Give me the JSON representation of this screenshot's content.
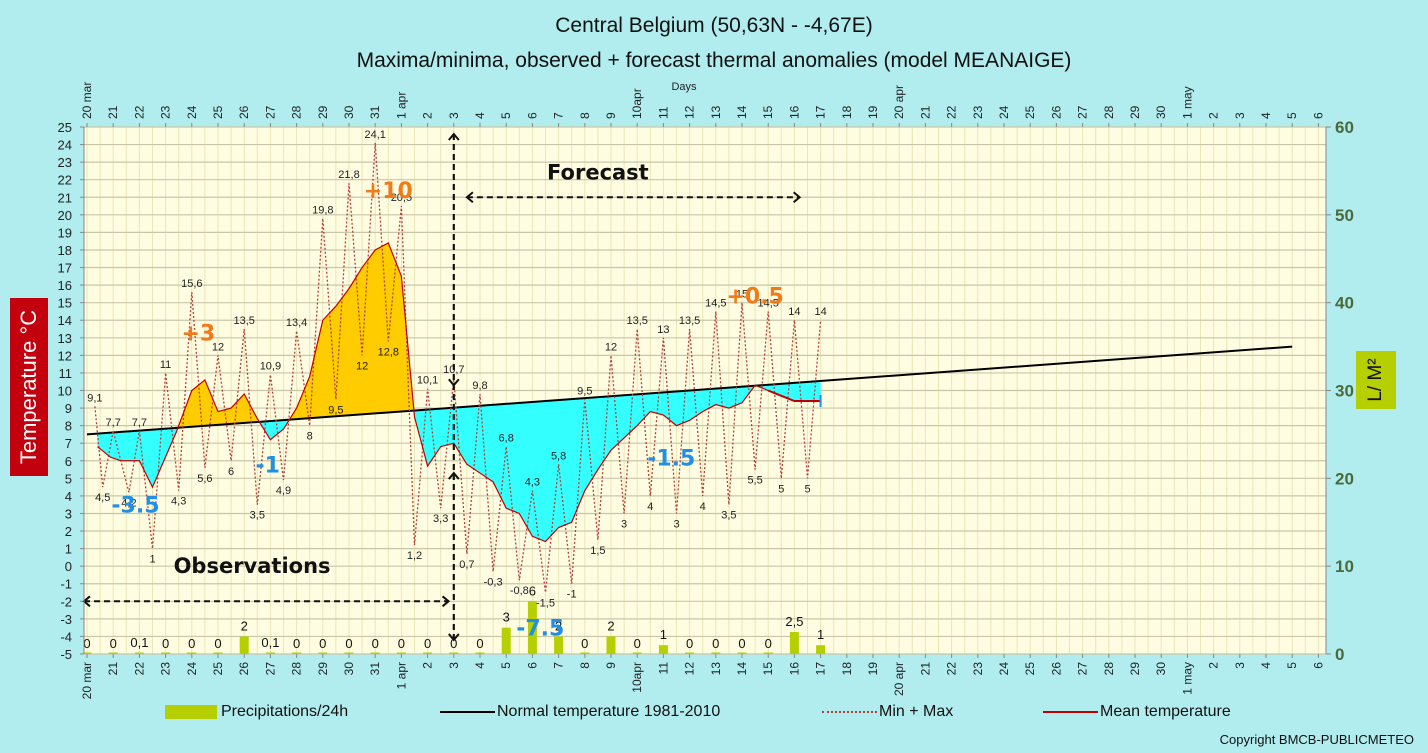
{
  "chart_data": {
    "type": "line",
    "title": "Central Belgium (50,63N - -4,67E)",
    "subtitle": "Maxima/minima, observed + forecast thermal anomalies (model MEANAIGE)",
    "xlabel": "Days",
    "ylabel_left": "Temperature °C",
    "ylabel_right": "L/ M²",
    "ylim_left": [
      -5,
      25
    ],
    "ylim_right": [
      0,
      60
    ],
    "yticks_left": [
      25,
      24,
      23,
      22,
      21,
      20,
      19,
      18,
      17,
      16,
      15,
      14,
      13,
      12,
      11,
      10,
      9,
      8,
      7,
      6,
      5,
      4,
      3,
      2,
      1,
      0,
      -1,
      -2,
      -3,
      -4,
      -5
    ],
    "yticks_right": [
      60,
      50,
      40,
      30,
      20,
      10,
      0
    ],
    "grid": true,
    "x_tick_labels": [
      "20 mar",
      "21",
      "22",
      "23",
      "24",
      "25",
      "26",
      "27",
      "28",
      "29",
      "30",
      "31",
      "1 apr",
      "2",
      "3",
      "4",
      "5",
      "6",
      "7",
      "8",
      "9",
      "10apr",
      "11",
      "12",
      "13",
      "14",
      "15",
      "16",
      "17",
      "18",
      "19",
      "20 apr",
      "21",
      "22",
      "23",
      "24",
      "25",
      "26",
      "27",
      "28",
      "29",
      "30",
      "1 may",
      "2",
      "3",
      "4",
      "5",
      "6"
    ],
    "normal_temperature": {
      "name": "Normal temperature 1981-2010",
      "start": {
        "day": 0,
        "value": 7.5
      },
      "end": {
        "day": 46,
        "value": 12.5
      }
    },
    "min_max": {
      "name": "Min + Max",
      "points": [
        {
          "day": 0.3,
          "value": 9.1,
          "label": "9,1"
        },
        {
          "day": 0.6,
          "value": 4.5,
          "label": "4,5"
        },
        {
          "day": 1.0,
          "value": 7.7,
          "label": "7,7"
        },
        {
          "day": 1.6,
          "value": 4.2,
          "label": "4,2"
        },
        {
          "day": 2.0,
          "value": 7.7,
          "label": "7,7"
        },
        {
          "day": 2.5,
          "value": 1,
          "label": "1"
        },
        {
          "day": 3.0,
          "value": 11,
          "label": "11"
        },
        {
          "day": 3.5,
          "value": 4.3,
          "label": "4,3"
        },
        {
          "day": 4.0,
          "value": 15.6,
          "label": "15,6"
        },
        {
          "day": 4.5,
          "value": 5.6,
          "label": "5,6"
        },
        {
          "day": 5.0,
          "value": 12,
          "label": "12"
        },
        {
          "day": 5.5,
          "value": 6,
          "label": "6"
        },
        {
          "day": 6.0,
          "value": 13.5,
          "label": "13,5"
        },
        {
          "day": 6.5,
          "value": 3.5,
          "label": "3,5"
        },
        {
          "day": 7.0,
          "value": 10.9,
          "label": "10,9"
        },
        {
          "day": 7.5,
          "value": 4.9,
          "label": "4,9"
        },
        {
          "day": 8.0,
          "value": 13.4,
          "label": "13,4"
        },
        {
          "day": 8.5,
          "value": 8,
          "label": "8"
        },
        {
          "day": 9.0,
          "value": 19.8,
          "label": "19,8"
        },
        {
          "day": 9.5,
          "value": 9.5,
          "label": "9,5"
        },
        {
          "day": 10.0,
          "value": 21.8,
          "label": "21,8"
        },
        {
          "day": 10.5,
          "value": 12,
          "label": "12"
        },
        {
          "day": 11.0,
          "value": 24.1,
          "label": "24,1"
        },
        {
          "day": 11.5,
          "value": 12.8,
          "label": "12,8"
        },
        {
          "day": 12.0,
          "value": 20.5,
          "label": "20,5"
        },
        {
          "day": 12.5,
          "value": 1.2,
          "label": "1,2"
        },
        {
          "day": 13.0,
          "value": 10.1,
          "label": "10,1"
        },
        {
          "day": 13.5,
          "value": 3.3,
          "label": "3,3"
        },
        {
          "day": 14.0,
          "value": 10.7,
          "label": "10,7"
        },
        {
          "day": 14.5,
          "value": 0.7,
          "label": "0,7"
        },
        {
          "day": 15.0,
          "value": 9.8,
          "label": "9,8"
        },
        {
          "day": 15.5,
          "value": -0.3,
          "label": "-0,3"
        },
        {
          "day": 16.0,
          "value": 6.8,
          "label": "6,8"
        },
        {
          "day": 16.5,
          "value": -0.8,
          "label": "-0,8"
        },
        {
          "day": 17.0,
          "value": 4.3,
          "label": "4,3"
        },
        {
          "day": 17.5,
          "value": -1.5,
          "label": "-1,5"
        },
        {
          "day": 18.0,
          "value": 5.8,
          "label": "5,8"
        },
        {
          "day": 18.5,
          "value": -1,
          "label": "-1"
        },
        {
          "day": 19.0,
          "value": 9.5,
          "label": "9,5"
        },
        {
          "day": 19.5,
          "value": 1.5,
          "label": "1,5"
        },
        {
          "day": 20.0,
          "value": 12,
          "label": "12"
        },
        {
          "day": 20.5,
          "value": 3,
          "label": "3"
        },
        {
          "day": 21.0,
          "value": 13.5,
          "label": "13,5"
        },
        {
          "day": 21.5,
          "value": 4,
          "label": "4"
        },
        {
          "day": 22.0,
          "value": 13,
          "label": "13"
        },
        {
          "day": 22.5,
          "value": 3,
          "label": "3"
        },
        {
          "day": 23.0,
          "value": 13.5,
          "label": "13,5"
        },
        {
          "day": 23.5,
          "value": 4,
          "label": "4"
        },
        {
          "day": 24.0,
          "value": 14.5,
          "label": "14,5"
        },
        {
          "day": 24.5,
          "value": 3.5,
          "label": "3,5"
        },
        {
          "day": 25.0,
          "value": 15,
          "label": "15"
        },
        {
          "day": 25.5,
          "value": 5.5,
          "label": "5,5"
        },
        {
          "day": 26.0,
          "value": 14.5,
          "label": "14,5"
        },
        {
          "day": 26.5,
          "value": 5,
          "label": "5"
        },
        {
          "day": 27.0,
          "value": 14,
          "label": "14"
        },
        {
          "day": 27.5,
          "value": 5,
          "label": "5"
        },
        {
          "day": 28.0,
          "value": 14,
          "label": "14"
        }
      ]
    },
    "mean_temperature": {
      "name": "Mean temperature",
      "days": [
        0.4,
        0.9,
        1.3,
        2.0,
        2.5,
        3.4,
        4.0,
        4.5,
        5.0,
        5.5,
        6.0,
        6.5,
        7.0,
        7.5,
        8.0,
        8.5,
        9.0,
        9.5,
        10.0,
        10.5,
        11.0,
        11.5,
        12.0,
        12.5,
        13.0,
        13.5,
        14.0,
        14.5,
        15.0,
        15.5,
        16.0,
        16.5,
        17.0,
        17.5,
        18.0,
        18.5,
        19.0,
        19.5,
        20.0,
        20.5,
        21.0,
        21.5,
        22.0,
        22.5,
        23.0,
        23.5,
        24.0,
        24.5,
        25.0,
        25.5,
        26.0,
        26.5,
        27.0,
        27.5,
        28.0
      ],
      "values": [
        6.8,
        6.2,
        6.0,
        6.0,
        4.5,
        7.6,
        10.0,
        10.6,
        8.8,
        9.0,
        9.8,
        8.4,
        7.2,
        7.8,
        9.0,
        10.8,
        14.0,
        14.8,
        15.8,
        17.0,
        18.0,
        18.4,
        16.5,
        8.5,
        5.7,
        6.8,
        7.0,
        5.8,
        5.3,
        4.8,
        3.3,
        3.0,
        1.7,
        1.4,
        2.2,
        2.5,
        4.3,
        5.5,
        6.6,
        7.3,
        8.0,
        8.8,
        8.6,
        8.0,
        8.3,
        8.8,
        9.2,
        9.0,
        9.3,
        10.3,
        10.0,
        9.7,
        9.4,
        9.4,
        9.4
      ]
    },
    "anomaly_labels": [
      {
        "text": "-3.5",
        "color": "#1f8fe8"
      },
      {
        "text": "+3",
        "color": "#f47a18"
      },
      {
        "text": "-1",
        "color": "#1f8fe8"
      },
      {
        "text": "+10",
        "color": "#f47a18"
      },
      {
        "text": "-7.5",
        "color": "#1f8fe8"
      },
      {
        "text": "-1.5",
        "color": "#1f8fe8"
      },
      {
        "text": "+0.5",
        "color": "#f47a18"
      }
    ],
    "precipitation": {
      "name": "Precipitations/24h",
      "unit": "L/M²",
      "days": [
        0,
        1,
        2,
        3,
        4,
        5,
        6,
        7,
        8,
        9,
        10,
        11,
        12,
        13,
        14,
        15,
        16,
        17,
        18,
        19,
        20,
        21,
        22,
        23,
        24,
        25,
        26,
        27,
        28
      ],
      "values": [
        0,
        0,
        0.1,
        0,
        0,
        0,
        2,
        0.1,
        0,
        0,
        0,
        0,
        0,
        0,
        0,
        0,
        3,
        6,
        2,
        0,
        2,
        0,
        1,
        0,
        0,
        0,
        0,
        2.5,
        1
      ],
      "labels": [
        "0",
        "0",
        "0,1",
        "0",
        "0",
        "0",
        "2",
        "0,1",
        "0",
        "0",
        "0",
        "0",
        "0",
        "0",
        "0",
        "0",
        "3",
        "6",
        "2",
        "0",
        "2",
        "0",
        "1",
        "0",
        "0",
        "0",
        "0",
        "2,5",
        "1"
      ]
    },
    "annotations": {
      "observations": "Observations",
      "forecast": "Forecast"
    },
    "colors": {
      "background": "#b1ecee",
      "plot_bg": "#fffde1",
      "positive_anomaly": "#ffcc00",
      "negative_anomaly": "#33ffff",
      "precip": "#b5cf00",
      "normal_line": "#000000",
      "minmax_line": "#b5403a",
      "mean_line": "#c00000"
    }
  },
  "legend": {
    "precip": "Precipitations/24h",
    "normal": "Normal temperature 1981-2010",
    "minmax": "Min + Max",
    "mean": "Mean temperature"
  },
  "copyright": "Copyright BMCB-PUBLICMETEO"
}
